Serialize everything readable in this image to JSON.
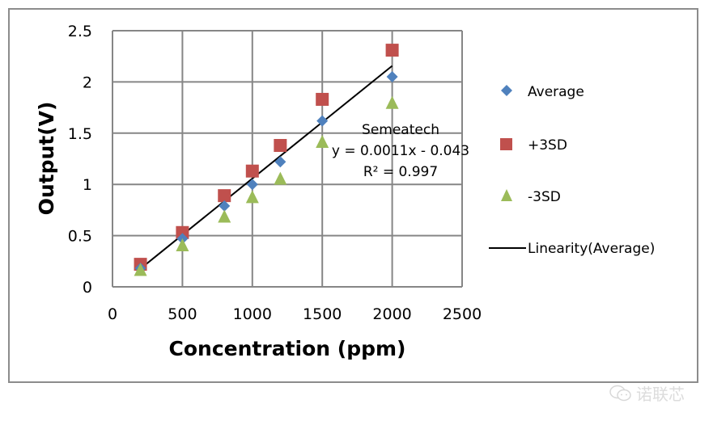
{
  "chart_data": {
    "type": "scatter",
    "title": "",
    "xlabel": "Concentration (ppm)",
    "ylabel": "Output(V)",
    "xlim": [
      0,
      2500
    ],
    "ylim": [
      0,
      2.5
    ],
    "xticks": [
      0,
      500,
      1000,
      1500,
      2000,
      2500
    ],
    "yticks": [
      0,
      0.5,
      1,
      1.5,
      2,
      2.5
    ],
    "xtick_labels": [
      "0",
      "500",
      "1000",
      "1500",
      "2000",
      "2500"
    ],
    "ytick_labels": [
      "0",
      "0.5",
      "1",
      "1.5",
      "2",
      "2.5"
    ],
    "grid": true,
    "legend_position": "right",
    "series": [
      {
        "name": "Average",
        "marker": "diamond",
        "color": "#4f81bd",
        "x": [
          200,
          500,
          800,
          1000,
          1200,
          1500,
          2000
        ],
        "y": [
          0.18,
          0.47,
          0.79,
          1.0,
          1.22,
          1.62,
          2.05
        ]
      },
      {
        "name": "+3SD",
        "marker": "square",
        "color": "#c0504d",
        "x": [
          200,
          500,
          800,
          1000,
          1200,
          1500,
          2000
        ],
        "y": [
          0.22,
          0.53,
          0.89,
          1.13,
          1.38,
          1.83,
          2.31
        ]
      },
      {
        "name": "-3SD",
        "marker": "triangle",
        "color": "#9bbb59",
        "x": [
          200,
          500,
          800,
          1000,
          1200,
          1500,
          2000
        ],
        "y": [
          0.17,
          0.41,
          0.69,
          0.88,
          1.06,
          1.42,
          1.8
        ]
      }
    ],
    "trendline": {
      "name": "Linearity(Average)",
      "color": "#000000",
      "slope": 0.0011,
      "intercept": -0.043,
      "x_range": [
        200,
        2000
      ]
    },
    "annotation": {
      "lines": [
        "Semeatech",
        "y = 0.0011x - 0.043",
        "R² = 0.997"
      ]
    },
    "legend": [
      "Average",
      "+3SD",
      "-3SD",
      "Linearity(Average)"
    ]
  },
  "watermark": {
    "icon": "wechat-icon",
    "text": "诺联芯"
  }
}
